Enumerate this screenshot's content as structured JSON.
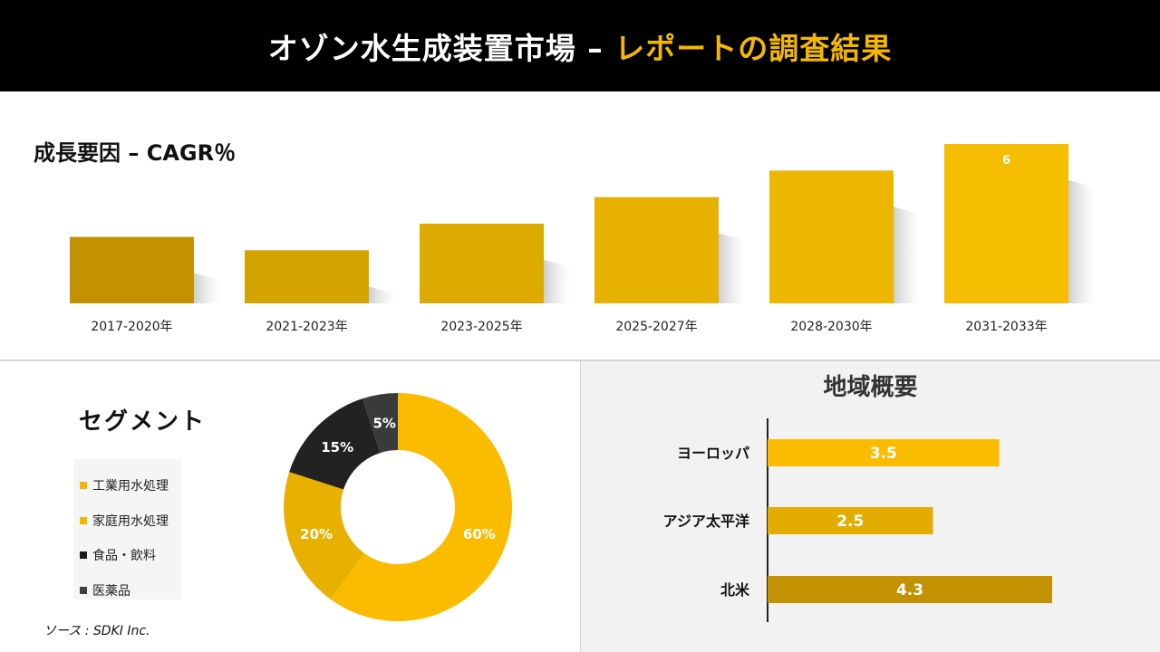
{
  "header": {
    "title_main": "オゾン水生成装置市場 – ",
    "title_accent": "レポートの調査結果",
    "accent_color": "#f5b800"
  },
  "cagr": {
    "title": "成長要因 – CAGR％"
  },
  "segment": {
    "title": "セグメント",
    "legend": [
      {
        "label": "工業用水処理",
        "color": "#f5b800"
      },
      {
        "label": "家庭用水処理",
        "color": "#f5b800"
      },
      {
        "label": "食品・飲料",
        "color": "#1a1a1a"
      },
      {
        "label": "医薬品",
        "color": "#404040"
      }
    ],
    "source": "ソース : SDKI Inc."
  },
  "region": {
    "title": "地域概要"
  },
  "chart_data": [
    {
      "type": "bar",
      "title": "成長要因 – CAGR％",
      "categories": [
        "2017-2020年",
        "2021-2023年",
        "2023-2025年",
        "2025-2027年",
        "2028-2030年",
        "2031-2033年"
      ],
      "values": [
        2.5,
        2.0,
        3.0,
        4.0,
        5.0,
        6.0
      ],
      "data_labels": [
        "",
        "",
        "",
        "",
        "",
        "6"
      ],
      "colors": [
        "#c29200",
        "#d4a300",
        "#ddab00",
        "#e6b100",
        "#edb600",
        "#f5bd00"
      ],
      "ylim": [
        0,
        6
      ]
    },
    {
      "type": "pie",
      "title": "セグメント",
      "categories": [
        "工業用水処理",
        "家庭用水処理",
        "食品・飲料",
        "医薬品"
      ],
      "values": [
        60,
        20,
        15,
        5
      ],
      "data_labels": [
        "60%",
        "20%",
        "15%",
        "5%"
      ],
      "colors": [
        "#fbbc00",
        "#e8b000",
        "#222222",
        "#3a3a3a"
      ]
    },
    {
      "type": "bar",
      "orientation": "horizontal",
      "title": "地域概要",
      "categories": [
        "ヨーロッパ",
        "アジア太平洋",
        "北米"
      ],
      "values": [
        3.5,
        2.5,
        4.3
      ],
      "data_labels": [
        "3.5",
        "2.5",
        "4.3"
      ],
      "colors": [
        "#fbbc00",
        "#e3ac00",
        "#c29200"
      ],
      "xlim": [
        0,
        4.3
      ]
    }
  ]
}
